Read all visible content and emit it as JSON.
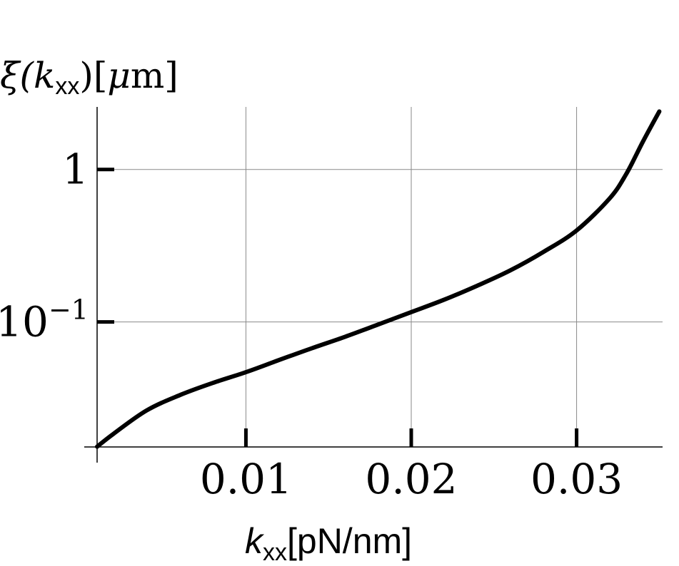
{
  "chart_data": {
    "type": "line",
    "xlabel": {
      "var": "k",
      "sub": "xx",
      "unit": "[pN/nm]"
    },
    "ylabel": {
      "pre": "ξ(",
      "var": "k",
      "sub": "xx",
      "post": ")[",
      "mu": "μ",
      "unit": "m]"
    },
    "xlim": [
      0.001,
      0.0352
    ],
    "ylim_log10": [
      -1.82,
      0.41
    ],
    "y_scale": "log",
    "grid": true,
    "x_ticks": [
      {
        "value": 0.01,
        "label": "0.01"
      },
      {
        "value": 0.02,
        "label": "0.02"
      },
      {
        "value": 0.03,
        "label": "0.03"
      }
    ],
    "y_ticks": [
      {
        "value": 1,
        "label_base": "1",
        "label_exp": ""
      },
      {
        "value": 0.1,
        "label_base": "10",
        "label_exp": "−1"
      }
    ],
    "series": [
      {
        "color": "#000000",
        "x": [
          0.001,
          0.002,
          0.004,
          0.006,
          0.008,
          0.01,
          0.012,
          0.014,
          0.016,
          0.018,
          0.02,
          0.022,
          0.024,
          0.026,
          0.028,
          0.03,
          0.032,
          0.033,
          0.034,
          0.035
        ],
        "y": [
          0.0152,
          0.0185,
          0.0263,
          0.0331,
          0.0398,
          0.0468,
          0.0562,
          0.0673,
          0.0799,
          0.0962,
          0.116,
          0.14,
          0.173,
          0.218,
          0.288,
          0.398,
          0.646,
          0.933,
          1.514,
          2.399
        ]
      }
    ]
  }
}
